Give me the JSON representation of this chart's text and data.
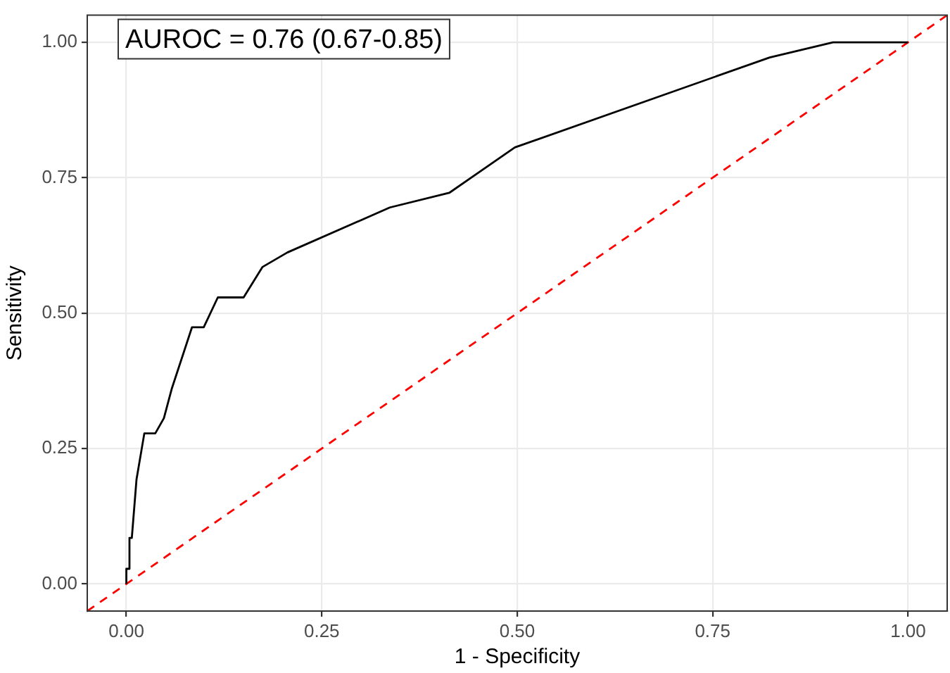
{
  "chart_data": {
    "type": "line",
    "xlabel": "1 - Specificity",
    "ylabel": "Sensitivity",
    "annotations": [
      "AUROC = 0.76 (0.67-0.85)"
    ],
    "series": [
      {
        "color": "#000000",
        "line_style": "solid",
        "x": [
          0,
          0,
          0.003,
          0.004,
          0.007,
          0.013,
          0.023,
          0.037,
          0.048,
          0.058,
          0.084,
          0.099,
          0.117,
          0.15,
          0.174,
          0.206,
          0.337,
          0.413,
          0.497,
          0.823,
          0.904,
          1
        ],
        "values": [
          0,
          0.028,
          0.028,
          0.085,
          0.085,
          0.193,
          0.278,
          0.278,
          0.306,
          0.36,
          0.474,
          0.474,
          0.529,
          0.529,
          0.585,
          0.612,
          0.695,
          0.722,
          0.806,
          0.972,
          1,
          1
        ]
      },
      {
        "color": "#ff0000",
        "line_style": "dashed",
        "x": [
          -0.05,
          1.05
        ],
        "values": [
          -0.05,
          1.05
        ]
      }
    ],
    "marker": "none",
    "grid": true,
    "legend": false,
    "xlim": [
      -0.05,
      1.05
    ],
    "ylim": [
      -0.05,
      1.05
    ],
    "xticks": [
      {
        "value": 0,
        "label": "0.00"
      },
      {
        "value": 0.25,
        "label": "0.25"
      },
      {
        "value": 0.5,
        "label": "0.50"
      },
      {
        "value": 0.75,
        "label": "0.75"
      },
      {
        "value": 1,
        "label": "1.00"
      }
    ],
    "yticks": [
      {
        "value": 0,
        "label": "0.00"
      },
      {
        "value": 0.25,
        "label": "0.25"
      },
      {
        "value": 0.5,
        "label": "0.50"
      },
      {
        "value": 0.75,
        "label": "0.75"
      },
      {
        "value": 1,
        "label": "1.00"
      }
    ]
  }
}
